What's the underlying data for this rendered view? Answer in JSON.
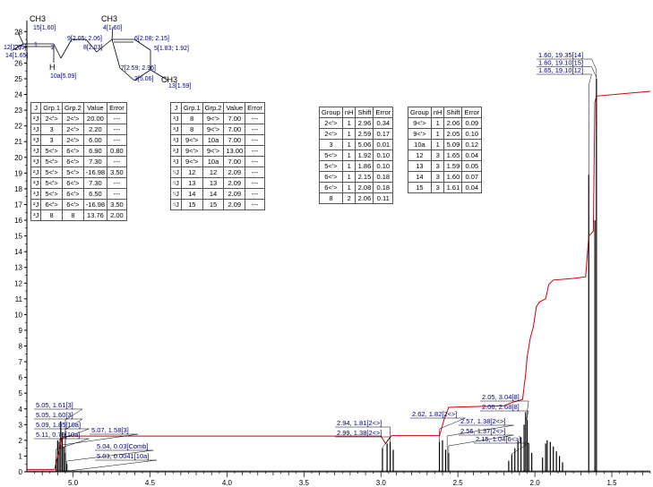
{
  "chart_data": {
    "type": "line",
    "x_axis": {
      "ticks": [
        "5.0",
        "4.5",
        "4.0",
        "3.5",
        "3.0",
        "2.5",
        "2.0",
        "1.5"
      ],
      "xlim": [
        5.3,
        1.25
      ],
      "reversed": true
    },
    "y_axis": {
      "ticks": [
        "0",
        "1",
        "2",
        "3",
        "4",
        "5",
        "6",
        "7",
        "8",
        "9",
        "10",
        "11",
        "12",
        "13",
        "14",
        "15",
        "16",
        "17",
        "18",
        "19",
        "20",
        "21",
        "22",
        "23",
        "24",
        "25",
        "26",
        "27",
        "28"
      ],
      "ylim": [
        0,
        28.7
      ]
    },
    "spectrum_peaks": [
      {
        "x": 5.11,
        "h": 0.8
      },
      {
        "x": 5.1,
        "h": 2.0
      },
      {
        "x": 5.09,
        "h": 1.9
      },
      {
        "x": 5.08,
        "h": 3.2
      },
      {
        "x": 5.07,
        "h": 2.5
      },
      {
        "x": 5.06,
        "h": 1.6
      },
      {
        "x": 5.05,
        "h": 1.2
      },
      {
        "x": 5.04,
        "h": 0.5
      },
      {
        "x": 2.99,
        "h": 1.5
      },
      {
        "x": 2.96,
        "h": 1.8
      },
      {
        "x": 2.94,
        "h": 1.9
      },
      {
        "x": 2.92,
        "h": 1.4
      },
      {
        "x": 2.62,
        "h": 1.9
      },
      {
        "x": 2.6,
        "h": 2.0
      },
      {
        "x": 2.58,
        "h": 1.4
      },
      {
        "x": 2.56,
        "h": 1.2
      },
      {
        "x": 2.17,
        "h": 0.7
      },
      {
        "x": 2.15,
        "h": 1.1
      },
      {
        "x": 2.13,
        "h": 1.5
      },
      {
        "x": 2.11,
        "h": 2.0
      },
      {
        "x": 2.09,
        "h": 2.2
      },
      {
        "x": 2.07,
        "h": 3.0
      },
      {
        "x": 2.06,
        "h": 3.8
      },
      {
        "x": 2.05,
        "h": 3.3
      },
      {
        "x": 2.04,
        "h": 1.8
      },
      {
        "x": 2.02,
        "h": 1.2
      },
      {
        "x": 1.95,
        "h": 0.9
      },
      {
        "x": 1.93,
        "h": 1.8
      },
      {
        "x": 1.92,
        "h": 2.0
      },
      {
        "x": 1.9,
        "h": 1.9
      },
      {
        "x": 1.88,
        "h": 1.6
      },
      {
        "x": 1.86,
        "h": 1.3
      },
      {
        "x": 1.84,
        "h": 1.0
      },
      {
        "x": 1.82,
        "h": 0.6
      },
      {
        "x": 1.65,
        "h": 18.9
      },
      {
        "x": 1.61,
        "h": 16.0
      },
      {
        "x": 1.6,
        "h": 25.0
      }
    ],
    "integral_curve": [
      [
        5.3,
        0.15
      ],
      [
        5.12,
        0.15
      ],
      [
        5.1,
        1.0
      ],
      [
        5.07,
        2.2
      ],
      [
        5.03,
        2.27
      ],
      [
        3.0,
        2.27
      ],
      [
        2.97,
        1.8
      ],
      [
        2.93,
        2.3
      ],
      [
        2.62,
        2.3
      ],
      [
        2.59,
        3.3
      ],
      [
        2.56,
        4.1
      ],
      [
        2.2,
        4.2
      ],
      [
        2.15,
        4.4
      ],
      [
        2.08,
        4.6
      ],
      [
        2.06,
        6.2
      ],
      [
        2.05,
        7.3
      ],
      [
        2.03,
        8.5
      ],
      [
        2.01,
        9.2
      ],
      [
        1.99,
        10.5
      ],
      [
        1.97,
        10.8
      ],
      [
        1.93,
        11.0
      ],
      [
        1.91,
        11.9
      ],
      [
        1.88,
        12.2
      ],
      [
        1.75,
        12.3
      ],
      [
        1.67,
        12.4
      ],
      [
        1.65,
        15.0
      ],
      [
        1.62,
        15.3
      ],
      [
        1.61,
        23.5
      ],
      [
        1.6,
        23.9
      ],
      [
        1.25,
        24.2
      ]
    ],
    "annotations_left": [
      {
        "text": "5.05, 1.61[3]",
        "x": 5.05
      },
      {
        "text": "5.05, 1.60[3]",
        "x": 5.05
      },
      {
        "text": "5.09, 1.85[10a]",
        "x": 5.09
      },
      {
        "text": "5.11, 0.79[10a]",
        "x": 5.11
      },
      {
        "text": "5.07, 1.58[3]",
        "x": 5.07
      },
      {
        "text": "5.04, 0.03[Comb]",
        "x": 5.04
      },
      {
        "text": "5.03, 0.0041[10a]",
        "x": 5.03
      }
    ],
    "annotations_mid": [
      {
        "text": "2.94, 1.81[2<>]",
        "x": 2.94
      },
      {
        "text": "2.99, 1.38[2<>]",
        "x": 2.99
      },
      {
        "text": "2.62, 1.82[2<>]",
        "x": 2.62
      },
      {
        "text": "2.57, 1.38[2<>]",
        "x": 2.57
      },
      {
        "text": "2.56, 1.37[2<>]",
        "x": 2.56
      }
    ],
    "annotations_right": [
      {
        "text": "2.05, 3.04[8]",
        "x": 2.05
      },
      {
        "text": "2.06, 2.68[8]",
        "x": 2.06
      },
      {
        "text": "2.15, 1.04[6<>]",
        "x": 2.15
      }
    ],
    "annotations_top": [
      {
        "text": "1.60, 19.35[14]",
        "x": 1.6
      },
      {
        "text": "1.60, 19.10[15]",
        "x": 1.6
      },
      {
        "text": "1.65, 19.10[12]",
        "x": 1.65
      }
    ]
  },
  "molecule": {
    "ch3_left": "CH3",
    "label_15": "15[1.60]",
    "label_1": "1",
    "label_2": "2",
    "label_9": "9[2.05; 2.06]",
    "label_8": "8[2.03]",
    "label_3": "3",
    "label_h": "H",
    "label_10a": "10a[5.09]",
    "label_14": "14[1.65]",
    "ch3_mid": "CH3",
    "label_4": "4[1.60]",
    "label_6": "6[2.08; 2.15]",
    "label_5": "5[1.83; 1.92]",
    "label_7": "7[2.59; 2.96]",
    "label_c1": "1",
    "label_c3": "3[5.06]",
    "ch3_right": "CH3",
    "label_13": "13[1.59]",
    "label_12": "12[1.65]"
  },
  "tables": {
    "j_left": {
      "headers": [
        "J",
        "Grp.1",
        "Grp.2",
        "Value",
        "Error"
      ],
      "rows": [
        [
          "²J",
          "2<'>",
          "2<'>",
          "20.00",
          "---"
        ],
        [
          "³J",
          "3",
          "2<'>",
          "2.20",
          "---"
        ],
        [
          "³J",
          "3",
          "2<'>",
          "6.00",
          "---"
        ],
        [
          "³J",
          "5<'>",
          "6<'>",
          "6.90",
          "0.80"
        ],
        [
          "³J",
          "5<'>",
          "6<'>",
          "7.30",
          "---"
        ],
        [
          "²J",
          "5<'>",
          "5<'>",
          "-16.98",
          "3.50"
        ],
        [
          "³J",
          "5<'>",
          "6<'>",
          "7.30",
          "---"
        ],
        [
          "³J",
          "5<'>",
          "6<'>",
          "6.50",
          "---"
        ],
        [
          "²J",
          "6<'>",
          "6<'>",
          "-16.98",
          "3.50"
        ],
        [
          "³J",
          "8",
          "8",
          "13.76",
          "2.00"
        ]
      ]
    },
    "j_right": {
      "headers": [
        "J",
        "Grp.1",
        "Grp.2",
        "Value",
        "Error"
      ],
      "rows": [
        [
          "³J",
          "8",
          "9<'>",
          "7.00",
          "---"
        ],
        [
          "³J",
          "8",
          "9<'>",
          "7.00",
          "---"
        ],
        [
          "³J",
          "9<'>",
          "10a",
          "7.00",
          "---"
        ],
        [
          "²J",
          "9<'>",
          "9<'>",
          "13.00",
          "---"
        ],
        [
          "³J",
          "9<'>",
          "10a",
          "7.00",
          "---"
        ],
        [
          "⁵J",
          "12",
          "12",
          "2.09",
          "---"
        ],
        [
          "⁵J",
          "13",
          "13",
          "2.09",
          "---"
        ],
        [
          "⁵J",
          "14",
          "14",
          "2.09",
          "---"
        ],
        [
          "⁵J",
          "15",
          "15",
          "2.09",
          "---"
        ]
      ]
    },
    "shift_left": {
      "headers": [
        "Group",
        "nH",
        "Shift",
        "Error"
      ],
      "rows": [
        [
          "2<'>",
          "1",
          "2.96",
          "0.34"
        ],
        [
          "2<'>",
          "1",
          "2.59",
          "0.17"
        ],
        [
          "3",
          "1",
          "5.06",
          "0.01"
        ],
        [
          "5<'>",
          "1",
          "1.92",
          "0.10"
        ],
        [
          "5<'>",
          "1",
          "1.86",
          "0.10"
        ],
        [
          "6<'>",
          "1",
          "2.15",
          "0.18"
        ],
        [
          "6<'>",
          "1",
          "2.08",
          "0.18"
        ],
        [
          "8",
          "2",
          "2.06",
          "0.11"
        ]
      ]
    },
    "shift_right": {
      "headers": [
        "Group",
        "nH",
        "Shift",
        "Error"
      ],
      "rows": [
        [
          "9<'>",
          "1",
          "2.06",
          "0.09"
        ],
        [
          "9<'>",
          "1",
          "2.05",
          "0.10"
        ],
        [
          "10a",
          "1",
          "5.09",
          "0.12"
        ],
        [
          "12",
          "3",
          "1.65",
          "0.04"
        ],
        [
          "13",
          "3",
          "1.59",
          "0.05"
        ],
        [
          "14",
          "3",
          "1.60",
          "0.07"
        ],
        [
          "15",
          "3",
          "1.61",
          "0.04"
        ]
      ]
    }
  }
}
